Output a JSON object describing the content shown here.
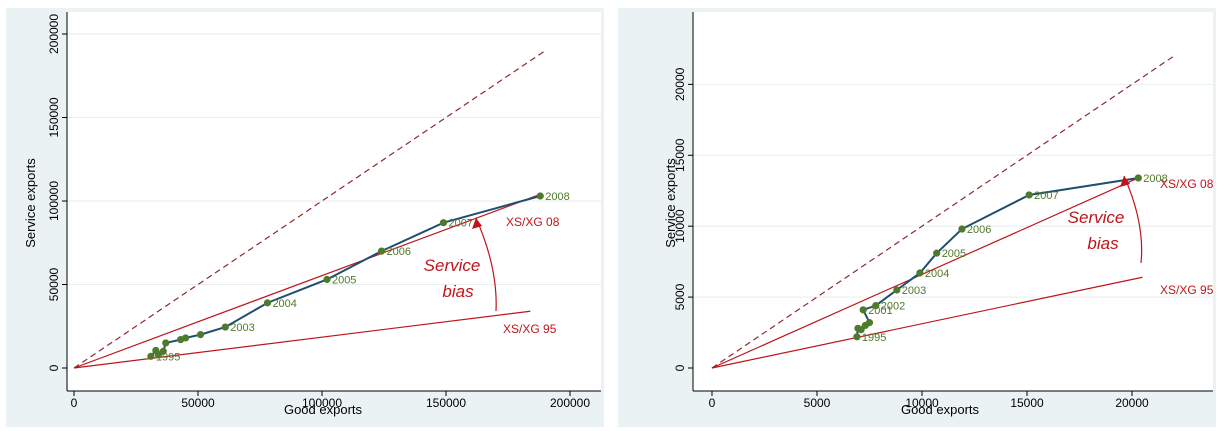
{
  "chart_data": [
    {
      "type": "line",
      "xlabel": "Good exports",
      "ylabel": "Service exports",
      "xlim": [
        0,
        200000
      ],
      "ylim": [
        0,
        200000
      ],
      "xticks": [
        "0",
        "50000",
        "100000",
        "150000",
        "200000"
      ],
      "yticks": [
        "0",
        "50000",
        "100000",
        "150000",
        "200000"
      ],
      "grid": true,
      "diagonal": {
        "style": "dashed",
        "x": [
          0,
          190000
        ],
        "y": [
          0,
          190000
        ]
      },
      "ratio_lines": [
        {
          "label": "XS/XG 95",
          "x": [
            0,
            184000
          ],
          "y": [
            0,
            34000
          ]
        },
        {
          "label": "XS/XG 08",
          "x": [
            0,
            188000
          ],
          "y": [
            0,
            104000
          ]
        }
      ],
      "annotation": [
        "Service",
        "bias"
      ],
      "series": [
        {
          "points": [
            {
              "x": 31000,
              "y": 7000,
              "label": "1995"
            },
            {
              "x": 33000,
              "y": 10500,
              "label": ""
            },
            {
              "x": 34000,
              "y": 8000,
              "label": ""
            },
            {
              "x": 36000,
              "y": 10000,
              "label": ""
            },
            {
              "x": 37000,
              "y": 15000,
              "label": ""
            },
            {
              "x": 43000,
              "y": 17000,
              "label": ""
            },
            {
              "x": 45000,
              "y": 18000,
              "label": ""
            },
            {
              "x": 51000,
              "y": 20000,
              "label": ""
            },
            {
              "x": 61000,
              "y": 24500,
              "label": "2003"
            },
            {
              "x": 78000,
              "y": 39000,
              "label": "2004"
            },
            {
              "x": 102000,
              "y": 53000,
              "label": "2005"
            },
            {
              "x": 124000,
              "y": 70000,
              "label": "2006"
            },
            {
              "x": 149000,
              "y": 87000,
              "label": "2007"
            },
            {
              "x": 188000,
              "y": 103000,
              "label": "2008"
            }
          ]
        }
      ]
    },
    {
      "type": "line",
      "xlabel": "Good exports",
      "ylabel": "Service exports",
      "xlim": [
        0,
        22000
      ],
      "ylim": [
        0,
        22000
      ],
      "xticks": [
        "0",
        "5000",
        "10000",
        "15000",
        "20000"
      ],
      "yticks": [
        "0",
        "5000",
        "10000",
        "15000",
        "20000"
      ],
      "grid": true,
      "diagonal": {
        "style": "dashed",
        "x": [
          0,
          22000
        ],
        "y": [
          0,
          22000
        ]
      },
      "ratio_lines": [
        {
          "label": "XS/XG 95",
          "x": [
            0,
            20500
          ],
          "y": [
            0,
            6400
          ]
        },
        {
          "label": "XS/XG 08",
          "x": [
            0,
            20300
          ],
          "y": [
            0,
            13400
          ]
        }
      ],
      "annotation": [
        "Service",
        "bias"
      ],
      "series": [
        {
          "points": [
            {
              "x": 6900,
              "y": 2200,
              "label": "1995"
            },
            {
              "x": 6950,
              "y": 2800,
              "label": ""
            },
            {
              "x": 7100,
              "y": 2700,
              "label": ""
            },
            {
              "x": 7300,
              "y": 3000,
              "label": ""
            },
            {
              "x": 7500,
              "y": 3200,
              "label": ""
            },
            {
              "x": 7200,
              "y": 4100,
              "label": "2001"
            },
            {
              "x": 7800,
              "y": 4400,
              "label": "2002"
            },
            {
              "x": 8800,
              "y": 5500,
              "label": "2003"
            },
            {
              "x": 9900,
              "y": 6700,
              "label": "2004"
            },
            {
              "x": 10700,
              "y": 8100,
              "label": "2005"
            },
            {
              "x": 11900,
              "y": 9800,
              "label": "2006"
            },
            {
              "x": 15100,
              "y": 12200,
              "label": "2007"
            },
            {
              "x": 20300,
              "y": 13400,
              "label": "2008"
            }
          ]
        }
      ]
    }
  ]
}
